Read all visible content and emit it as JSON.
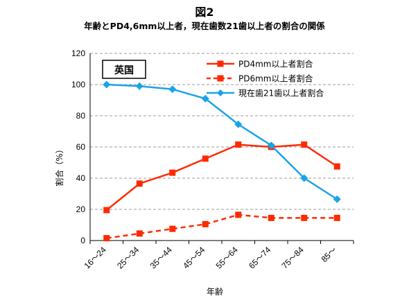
{
  "title": "図2",
  "subtitle": "年齢とPD4,6mm以上者，現在歯数21歯以上者の割合の関係",
  "chart_data": {
    "type": "line",
    "title": "図2",
    "subtitle": "年齢とPD4,6mm以上者，現在歯数21歯以上者の割合の関係",
    "country_label": "英国",
    "xlabel": "年齢",
    "ylabel": "割合（%）",
    "categories": [
      "16～24",
      "25～34",
      "35～44",
      "45～54",
      "55～64",
      "65～74",
      "75～84",
      "85～"
    ],
    "ylim": [
      0,
      120
    ],
    "yticks": [
      0,
      20,
      40,
      60,
      80,
      100,
      120
    ],
    "grid": true,
    "legend_position": "top-right",
    "series": [
      {
        "name": "PD4mm以上者割合",
        "values": [
          19.5,
          36.5,
          43.5,
          52.5,
          61.5,
          60,
          61.5,
          47.5
        ],
        "color": "#ff2a00",
        "marker": "square",
        "line": "solid"
      },
      {
        "name": "PD6mm以上者割合",
        "values": [
          1.5,
          4.5,
          7.5,
          10.5,
          16.5,
          14.5,
          14.5,
          14.5
        ],
        "color": "#ff2a00",
        "marker": "square",
        "line": "dashed"
      },
      {
        "name": "現在歯21歯以上者割合",
        "values": [
          100,
          99,
          97,
          91,
          74.5,
          61,
          40,
          26.5
        ],
        "color": "#1aa3e8",
        "marker": "diamond",
        "line": "solid"
      }
    ]
  }
}
